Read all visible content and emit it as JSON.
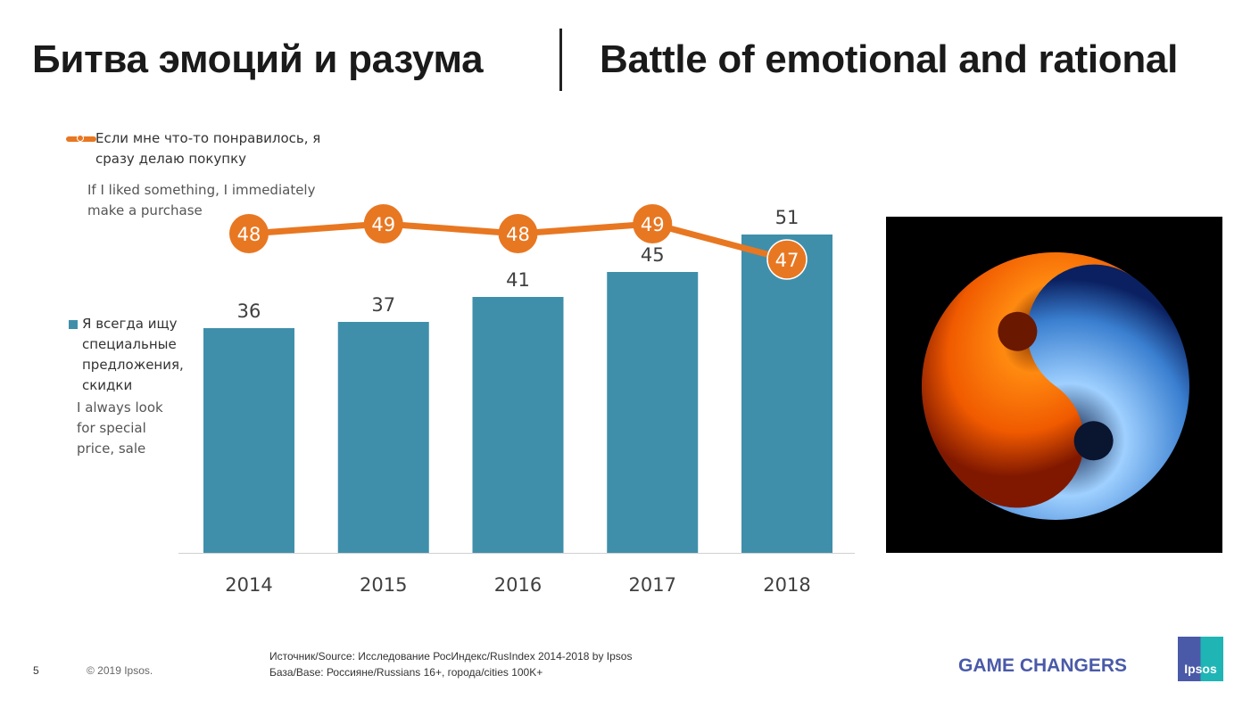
{
  "header": {
    "title_ru": "Битва эмоций и разума",
    "title_en": "Battle of emotional and rational"
  },
  "chart_data": {
    "type": "bar+line",
    "categories": [
      "2014",
      "2015",
      "2016",
      "2017",
      "2018"
    ],
    "series": [
      {
        "name": "Я всегда ищу специальные предложения, скидки",
        "name_en": "I always look for special price, sale",
        "type": "bar",
        "color": "#3f8fab",
        "values": [
          36,
          37,
          41,
          45,
          51
        ]
      },
      {
        "name": "Если мне что-то понравилось, я сразу делаю покупку",
        "name_en": "If I liked something, I immediately make a purchase",
        "type": "line",
        "color": "#e87722",
        "values": [
          48,
          49,
          48,
          49,
          47
        ]
      }
    ],
    "ylim": [
      0,
      60
    ]
  },
  "legend": {
    "line_ru": [
      "Если мне что-то понравилось, я",
      "сразу делаю покупку"
    ],
    "line_en": [
      "If I liked something, I immediately",
      "make a purchase"
    ],
    "bar_ru": [
      "Я всегда ищу",
      "специальные",
      "предложения,",
      "скидки"
    ],
    "bar_en": [
      "I always look",
      "for special",
      "price, sale"
    ]
  },
  "footer": {
    "page": "5",
    "copyright": "© 2019 Ipsos.",
    "source": "Источник/Source: Исследование РосИндекс/RusIndex 2014-2018  by Ipsos",
    "base": "База/Base: Россияне/Russians 16+, города/cities 100K+",
    "tagline": "GAME CHANGERS",
    "logo": "Ipsos"
  }
}
